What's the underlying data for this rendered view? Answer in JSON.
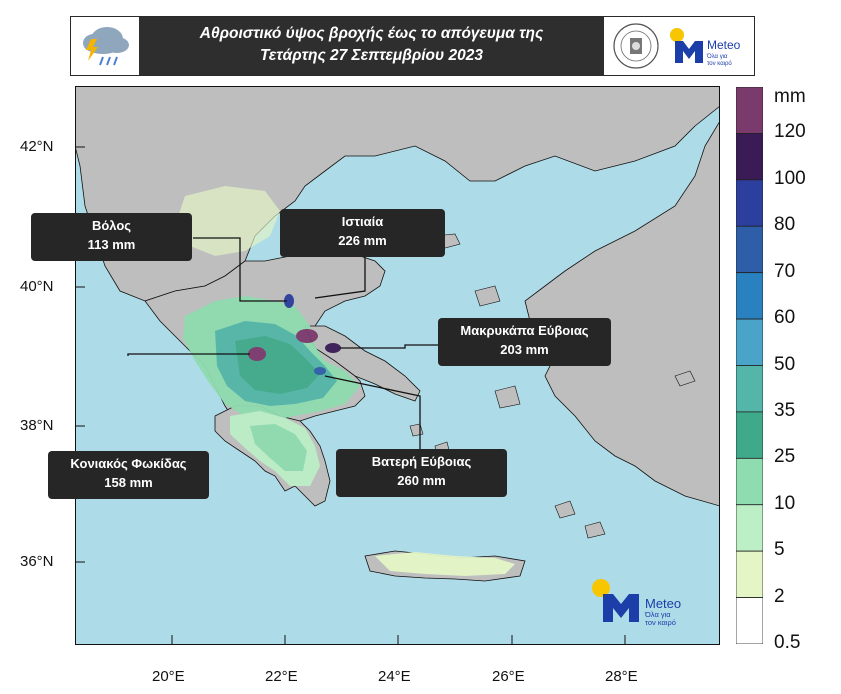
{
  "header": {
    "title_line1": "Αθροιστικό ύψος βροχής έως το απόγευμα της",
    "title_line2": "Τετάρτης 27 Σεπτεμβρίου 2023",
    "meteo_brand": "Meteo",
    "meteo_tagline_1": "Όλα για",
    "meteo_tagline_2": "τον καιρό"
  },
  "map": {
    "sea_color": "#aedbe8",
    "land_color": "#bebebe",
    "lat_labels": [
      "42°N",
      "40°N",
      "38°N",
      "36°N"
    ],
    "lon_labels": [
      "20°E",
      "22°E",
      "24°E",
      "26°E",
      "28°E"
    ]
  },
  "stations": [
    {
      "name": "Βόλος",
      "value": "113 mm"
    },
    {
      "name": "Ιστιαία",
      "value": "226 mm"
    },
    {
      "name": "Μακρυκάπα Εύβοιας",
      "value": "203 mm"
    },
    {
      "name": "Κονιακός Φωκίδας",
      "value": "158 mm"
    },
    {
      "name": "Βατερή Εύβοιας",
      "value": "260 mm"
    }
  ],
  "colorbar": {
    "unit": "mm",
    "levels": [
      "120",
      "100",
      "80",
      "70",
      "60",
      "50",
      "35",
      "25",
      "10",
      "5",
      "2",
      "0.5"
    ],
    "colors": [
      "#7a3a6c",
      "#3a1b55",
      "#2c3e9e",
      "#2f5ea8",
      "#2a81bf",
      "#4aa3c9",
      "#53b6a8",
      "#3faa8a",
      "#8fdcb0",
      "#bcefc6",
      "#e4f5c6",
      "#ffffff"
    ]
  },
  "logo": {
    "brand": "Meteo",
    "tagline_1": "Όλα για",
    "tagline_2": "τον καιρό"
  }
}
